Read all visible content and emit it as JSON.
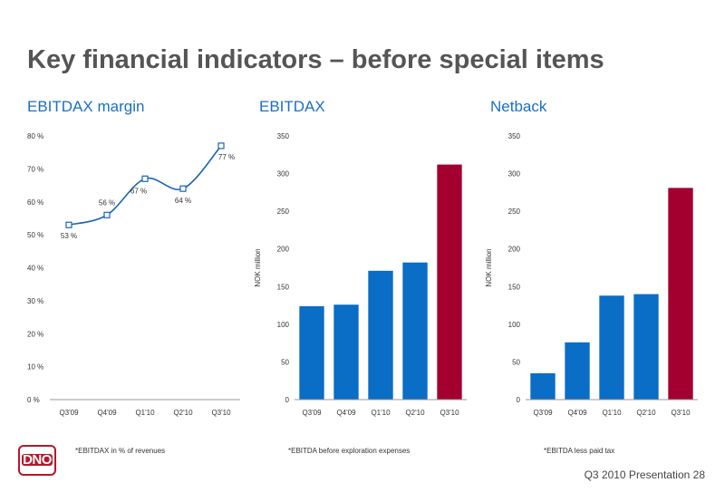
{
  "slide": {
    "title": "Key financial indicators – before special items",
    "footer": "Q3 2010 Presentation  28",
    "logo_text": "DNO"
  },
  "colors": {
    "title_blue": "#1a6fc4",
    "bar_blue": "#0a6dc6",
    "bar_red": "#a30030",
    "line": "#1a64b4"
  },
  "chart_data": [
    {
      "type": "line",
      "title": "EBITDAX margin",
      "categories": [
        "Q3'09",
        "Q4'09",
        "Q1'10",
        "Q2'10",
        "Q3'10"
      ],
      "values": [
        53,
        56,
        67,
        64,
        77
      ],
      "value_labels": [
        "53 %",
        "56 %",
        "67 %",
        "64 %",
        "77 %"
      ],
      "ylim": [
        0,
        80
      ],
      "yticks": [
        0,
        10,
        20,
        30,
        40,
        50,
        60,
        70,
        80
      ],
      "ytick_labels": [
        "0 %",
        "10 %",
        "20 %",
        "30 %",
        "40 %",
        "50 %",
        "60 %",
        "70 %",
        "80 %"
      ],
      "ylabel": "",
      "footnote": "*EBITDAX in % of revenues"
    },
    {
      "type": "bar",
      "title": "EBITDAX",
      "categories": [
        "Q3'09",
        "Q4'09",
        "Q1'10",
        "Q2'10",
        "Q3'10"
      ],
      "values": [
        124,
        126,
        171,
        182,
        312
      ],
      "highlight": [
        false,
        false,
        false,
        false,
        true
      ],
      "ylim": [
        0,
        350
      ],
      "yticks": [
        0,
        50,
        100,
        150,
        200,
        250,
        300,
        350
      ],
      "ytick_labels": [
        "0",
        "50",
        "100",
        "150",
        "200",
        "250",
        "300",
        "350"
      ],
      "ylabel": "NOK million",
      "footnote": "*EBITDA before exploration expenses"
    },
    {
      "type": "bar",
      "title": "Netback",
      "categories": [
        "Q3'09",
        "Q4'09",
        "Q1'10",
        "Q2'10",
        "Q3'10"
      ],
      "values": [
        35,
        76,
        138,
        140,
        281
      ],
      "highlight": [
        false,
        false,
        false,
        false,
        true
      ],
      "ylim": [
        0,
        350
      ],
      "yticks": [
        0,
        50,
        100,
        150,
        200,
        250,
        300,
        350
      ],
      "ytick_labels": [
        "0",
        "50",
        "100",
        "150",
        "200",
        "250",
        "300",
        "350"
      ],
      "ylabel": "NOK million",
      "footnote": "*EBITDA less paid tax"
    }
  ]
}
